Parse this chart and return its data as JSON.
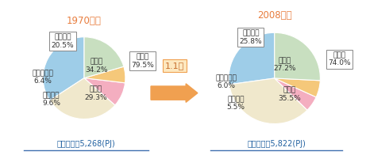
{
  "title_left": "1970年度",
  "title_right": "2008年度",
  "subtitle_left": "消費合計：5,268(PJ)",
  "subtitle_right": "消費合計：5,822(PJ)",
  "arrow_label": "1.1倍",
  "pie1": {
    "labels": [
      "鉄　鋼",
      "化　学",
      "窯業土石",
      "紙・パルプ",
      "非素材系"
    ],
    "values": [
      34.2,
      29.3,
      9.6,
      6.4,
      20.5
    ],
    "colors": [
      "#9ecde8",
      "#f0e8cc",
      "#f4aec0",
      "#f5c87a",
      "#c8dfc0"
    ],
    "startangle": 90
  },
  "pie2": {
    "labels": [
      "鉄　鋼",
      "化　学",
      "窯業土石",
      "紙・パルプ",
      "非素材系"
    ],
    "values": [
      27.2,
      35.5,
      5.5,
      6.0,
      25.8
    ],
    "colors": [
      "#9ecde8",
      "#f0e8cc",
      "#f4aec0",
      "#f5c87a",
      "#c8dfc0"
    ],
    "startangle": 90
  },
  "title_color": "#e87d3e",
  "label_color": "#333333",
  "subtitle_color": "#2060a0",
  "box_edge_color": "#888888",
  "arrow_color": "#f0a050",
  "arrow_text_color": "#c87030",
  "arrow_box_color": "#fde8c0",
  "underline_color": "#4070b0",
  "background_color": "#ffffff",
  "label_fontsize": 6.5,
  "title_fontsize": 8.5,
  "subtitle_fontsize": 7.0,
  "arrow_fontsize": 8.0
}
